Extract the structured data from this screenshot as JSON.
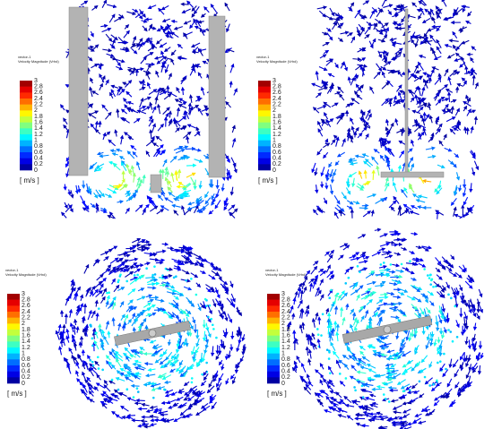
{
  "panels": [
    {
      "legend": {
        "title": "vector-1",
        "subtitle": "Velocity Magnitude (Vrhd)",
        "ticks": [
          "3",
          "2.8",
          "2.6",
          "2.4",
          "2.2",
          "2",
          "1.8",
          "1.6",
          "1.4",
          "1.2",
          "1",
          "0.8",
          "0.6",
          "0.4",
          "0.2",
          "0"
        ],
        "unit": "[ m/s ]"
      }
    },
    {
      "legend": {
        "title": "vector-1",
        "subtitle": "Velocity Magnitude (Vrhd)",
        "ticks": [
          "3",
          "2.8",
          "2.6",
          "2.4",
          "2.2",
          "2",
          "1.8",
          "1.6",
          "1.4",
          "1.2",
          "1",
          "0.8",
          "0.6",
          "0.4",
          "0.2",
          "0"
        ],
        "unit": "[ m/s ]"
      }
    },
    {
      "legend": {
        "title": "vector-1",
        "subtitle": "Velocity Magnitude (Vrhd)",
        "ticks": [
          "3",
          "2.8",
          "2.6",
          "2.4",
          "2.2",
          "2",
          "1.8",
          "1.6",
          "1.4",
          "1.2",
          "1",
          "0.8",
          "0.6",
          "0.4",
          "0.2",
          "0"
        ],
        "unit": "[ m/s ]"
      }
    },
    {
      "legend": {
        "title": "vector-1",
        "subtitle": "Velocity Magnitude (Vrhd)",
        "ticks": [
          "3",
          "2.8",
          "2.6",
          "2.4",
          "2.2",
          "2",
          "1.8",
          "1.6",
          "1.4",
          "1.2",
          "1",
          "0.8",
          "0.6",
          "0.4",
          "0.2",
          "0"
        ],
        "unit": "[ m/s ]"
      }
    }
  ]
}
